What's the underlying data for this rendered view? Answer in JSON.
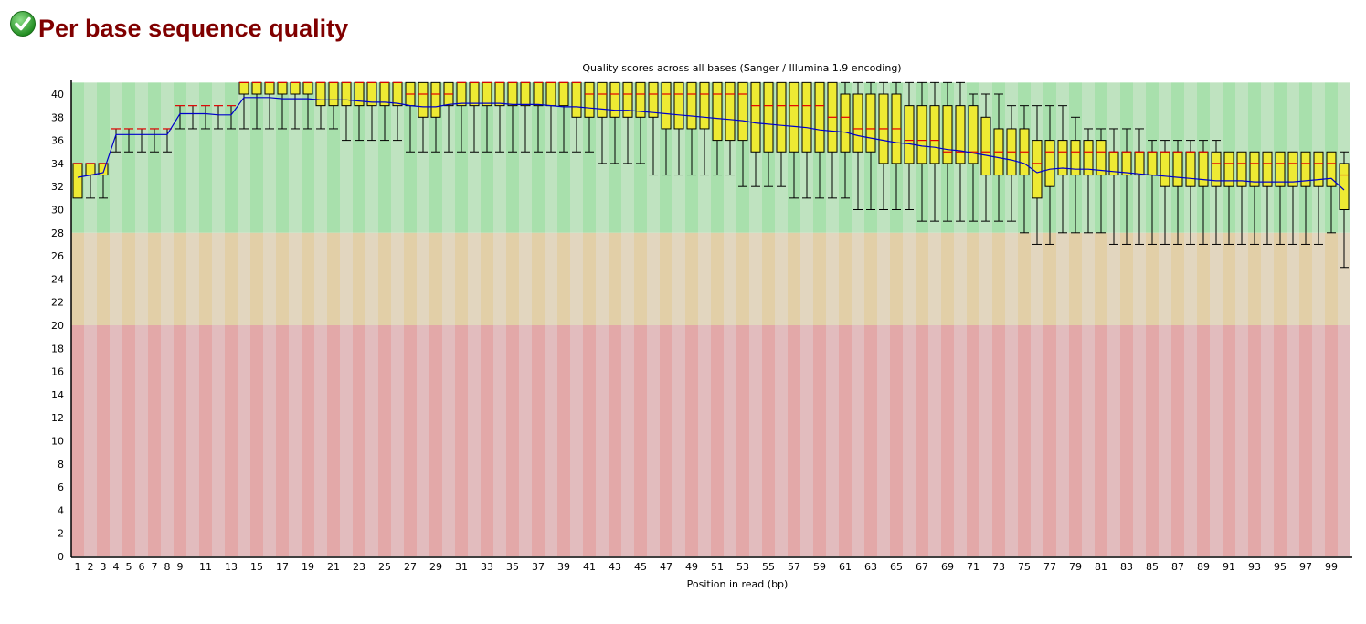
{
  "header": {
    "title": "Per base sequence quality",
    "status_icon": "pass-check-icon"
  },
  "colors": {
    "title": "#800000",
    "box": "#eeea33",
    "median": "#e00000",
    "mean": "#0000cc",
    "good": [
      "#a8e0ac",
      "#bfe3c0"
    ],
    "warn": [
      "#e2cfa7",
      "#e2d6bf"
    ],
    "bad": [
      "#e3a8a8",
      "#e2bcbe"
    ]
  },
  "chart_data": {
    "type": "boxplot",
    "title": "Quality scores across all bases (Sanger / Illumina 1.9 encoding)",
    "xlabel": "Position in read (bp)",
    "ylabel": "",
    "ylim": [
      0,
      41
    ],
    "yticks": [
      0,
      2,
      4,
      6,
      8,
      10,
      12,
      14,
      16,
      18,
      20,
      22,
      24,
      26,
      28,
      30,
      32,
      34,
      36,
      38,
      40
    ],
    "xtick_labels": [
      "1",
      "2",
      "3",
      "4",
      "5",
      "6",
      "7",
      "8",
      "9",
      "11",
      "13",
      "15",
      "17",
      "19",
      "21",
      "23",
      "25",
      "27",
      "29",
      "31",
      "33",
      "35",
      "37",
      "39",
      "41",
      "43",
      "45",
      "47",
      "49",
      "51",
      "53",
      "55",
      "57",
      "59",
      "61",
      "63",
      "65",
      "67",
      "69",
      "71",
      "73",
      "75",
      "77",
      "79",
      "81",
      "83",
      "85",
      "87",
      "89",
      "91",
      "93",
      "95",
      "97",
      "99"
    ],
    "zones": [
      {
        "name": "good",
        "from": 28,
        "to": 41
      },
      {
        "name": "warn",
        "from": 20,
        "to": 28
      },
      {
        "name": "bad",
        "from": 0,
        "to": 20
      }
    ],
    "positions": 100,
    "lower_whisker": [
      31,
      31,
      31,
      35,
      35,
      35,
      35,
      35,
      37,
      37,
      37,
      37,
      37,
      37,
      37,
      37,
      37,
      37,
      37,
      37,
      37,
      36,
      36,
      36,
      36,
      36,
      35,
      35,
      35,
      35,
      35,
      35,
      35,
      35,
      35,
      35,
      35,
      35,
      35,
      35,
      35,
      34,
      34,
      34,
      34,
      33,
      33,
      33,
      33,
      33,
      33,
      33,
      32,
      32,
      32,
      32,
      31,
      31,
      31,
      31,
      31,
      30,
      30,
      30,
      30,
      30,
      29,
      29,
      29,
      29,
      29,
      29,
      29,
      29,
      28,
      27,
      27,
      28,
      28,
      28,
      28,
      27,
      27,
      27,
      27,
      27,
      27,
      27,
      27,
      27,
      27,
      27,
      27,
      27,
      27,
      27,
      27,
      27,
      28,
      25
    ],
    "q1": [
      31,
      33,
      33,
      37,
      37,
      37,
      37,
      37,
      39,
      39,
      39,
      39,
      39,
      40,
      40,
      40,
      40,
      40,
      40,
      39,
      39,
      39,
      39,
      39,
      39,
      39,
      39,
      38,
      38,
      39,
      39,
      39,
      39,
      39,
      39,
      39,
      39,
      39,
      39,
      38,
      38,
      38,
      38,
      38,
      38,
      38,
      37,
      37,
      37,
      37,
      36,
      36,
      36,
      35,
      35,
      35,
      35,
      35,
      35,
      35,
      35,
      35,
      35,
      34,
      34,
      34,
      34,
      34,
      34,
      34,
      34,
      33,
      33,
      33,
      33,
      31,
      32,
      33,
      33,
      33,
      33,
      33,
      33,
      33,
      33,
      32,
      32,
      32,
      32,
      32,
      32,
      32,
      32,
      32,
      32,
      32,
      32,
      32,
      32,
      30
    ],
    "median": [
      34,
      34,
      34,
      37,
      37,
      37,
      37,
      37,
      39,
      39,
      39,
      39,
      39,
      41,
      41,
      41,
      41,
      41,
      41,
      41,
      41,
      41,
      41,
      41,
      41,
      41,
      40,
      40,
      40,
      40,
      41,
      41,
      41,
      41,
      41,
      41,
      41,
      41,
      41,
      41,
      40,
      40,
      40,
      40,
      40,
      40,
      40,
      40,
      40,
      40,
      40,
      40,
      40,
      39,
      39,
      39,
      39,
      39,
      39,
      38,
      38,
      37,
      37,
      37,
      37,
      36,
      36,
      36,
      35,
      35,
      35,
      35,
      35,
      35,
      35,
      34,
      35,
      35,
      35,
      35,
      35,
      35,
      35,
      35,
      35,
      35,
      35,
      35,
      35,
      34,
      34,
      34,
      34,
      34,
      34,
      34,
      34,
      34,
      34,
      33
    ],
    "q3": [
      34,
      34,
      34,
      37,
      37,
      37,
      37,
      37,
      39,
      39,
      39,
      39,
      39,
      41,
      41,
      41,
      41,
      41,
      41,
      41,
      41,
      41,
      41,
      41,
      41,
      41,
      41,
      41,
      41,
      41,
      41,
      41,
      41,
      41,
      41,
      41,
      41,
      41,
      41,
      41,
      41,
      41,
      41,
      41,
      41,
      41,
      41,
      41,
      41,
      41,
      41,
      41,
      41,
      41,
      41,
      41,
      41,
      41,
      41,
      41,
      40,
      40,
      40,
      40,
      40,
      39,
      39,
      39,
      39,
      39,
      39,
      38,
      37,
      37,
      37,
      36,
      36,
      36,
      36,
      36,
      36,
      35,
      35,
      35,
      35,
      35,
      35,
      35,
      35,
      35,
      35,
      35,
      35,
      35,
      35,
      35,
      35,
      35,
      35,
      34
    ],
    "upper_whisker": [
      34,
      34,
      34,
      37,
      37,
      37,
      37,
      37,
      39,
      39,
      39,
      39,
      39,
      41,
      41,
      41,
      41,
      41,
      41,
      41,
      41,
      41,
      41,
      41,
      41,
      41,
      41,
      41,
      41,
      41,
      41,
      41,
      41,
      41,
      41,
      41,
      41,
      41,
      41,
      41,
      41,
      41,
      41,
      41,
      41,
      41,
      41,
      41,
      41,
      41,
      41,
      41,
      41,
      41,
      41,
      41,
      41,
      41,
      41,
      41,
      41,
      41,
      41,
      41,
      41,
      41,
      41,
      41,
      41,
      41,
      40,
      40,
      40,
      39,
      39,
      39,
      39,
      39,
      38,
      37,
      37,
      37,
      37,
      37,
      36,
      36,
      36,
      36,
      36,
      36,
      35,
      35,
      35,
      35,
      35,
      35,
      35,
      35,
      35,
      35
    ],
    "mean": [
      32.8,
      33.0,
      33.2,
      36.5,
      36.5,
      36.5,
      36.5,
      36.5,
      38.3,
      38.3,
      38.3,
      38.2,
      38.2,
      39.7,
      39.7,
      39.7,
      39.6,
      39.6,
      39.6,
      39.5,
      39.5,
      39.5,
      39.4,
      39.3,
      39.3,
      39.2,
      39.0,
      38.9,
      38.9,
      39.1,
      39.2,
      39.2,
      39.2,
      39.2,
      39.1,
      39.1,
      39.1,
      39.0,
      38.9,
      38.9,
      38.8,
      38.7,
      38.6,
      38.6,
      38.5,
      38.4,
      38.3,
      38.2,
      38.1,
      38.0,
      37.9,
      37.8,
      37.7,
      37.5,
      37.4,
      37.3,
      37.2,
      37.1,
      36.9,
      36.8,
      36.7,
      36.4,
      36.2,
      36.0,
      35.8,
      35.7,
      35.5,
      35.4,
      35.2,
      35.1,
      34.9,
      34.7,
      34.5,
      34.3,
      34.0,
      33.2,
      33.5,
      33.6,
      33.5,
      33.5,
      33.4,
      33.3,
      33.2,
      33.1,
      33.0,
      32.9,
      32.8,
      32.7,
      32.6,
      32.5,
      32.5,
      32.5,
      32.4,
      32.4,
      32.4,
      32.4,
      32.5,
      32.6,
      32.7,
      31.7
    ]
  }
}
